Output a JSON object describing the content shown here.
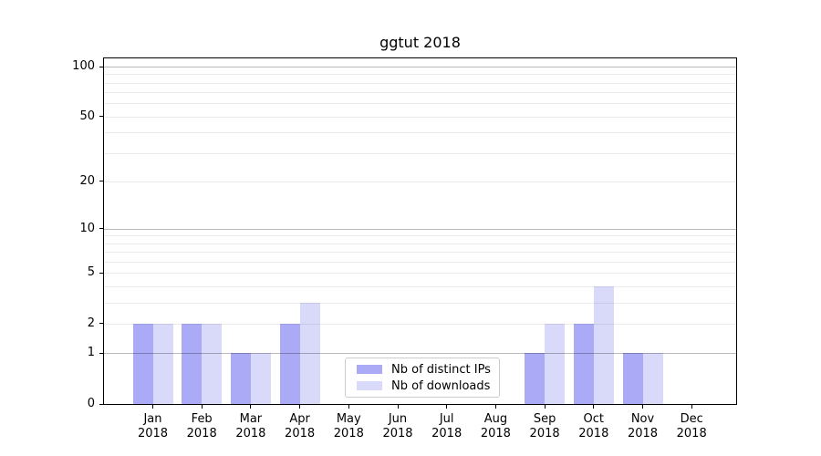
{
  "title": "ggtut 2018",
  "chart_data": {
    "type": "bar",
    "title": "ggtut 2018",
    "x_months": [
      "Jan",
      "Feb",
      "Mar",
      "Apr",
      "May",
      "Jun",
      "Jul",
      "Aug",
      "Sep",
      "Oct",
      "Nov",
      "Dec"
    ],
    "x_year": "2018",
    "series": [
      {
        "name": "Nb of distinct IPs",
        "color": "#aaaaf7",
        "values": [
          2,
          2,
          1,
          2,
          0,
          0,
          0,
          0,
          1,
          2,
          1,
          0
        ]
      },
      {
        "name": "Nb of downloads",
        "color": "#d9d9fa",
        "values": [
          2,
          2,
          1,
          3,
          0,
          0,
          0,
          0,
          2,
          4,
          1,
          0
        ]
      }
    ],
    "y_scale": "log1p",
    "ylim": [
      0,
      112
    ],
    "y_ticks": [
      0,
      1,
      2,
      5,
      10,
      20,
      50,
      100
    ],
    "y_gridlines_major": [
      1,
      10,
      100
    ],
    "y_gridlines_minor": [
      2,
      3,
      4,
      5,
      6,
      7,
      8,
      9,
      20,
      30,
      40,
      50,
      60,
      70,
      80,
      90
    ],
    "grid": true,
    "legend_position": "lower center"
  }
}
